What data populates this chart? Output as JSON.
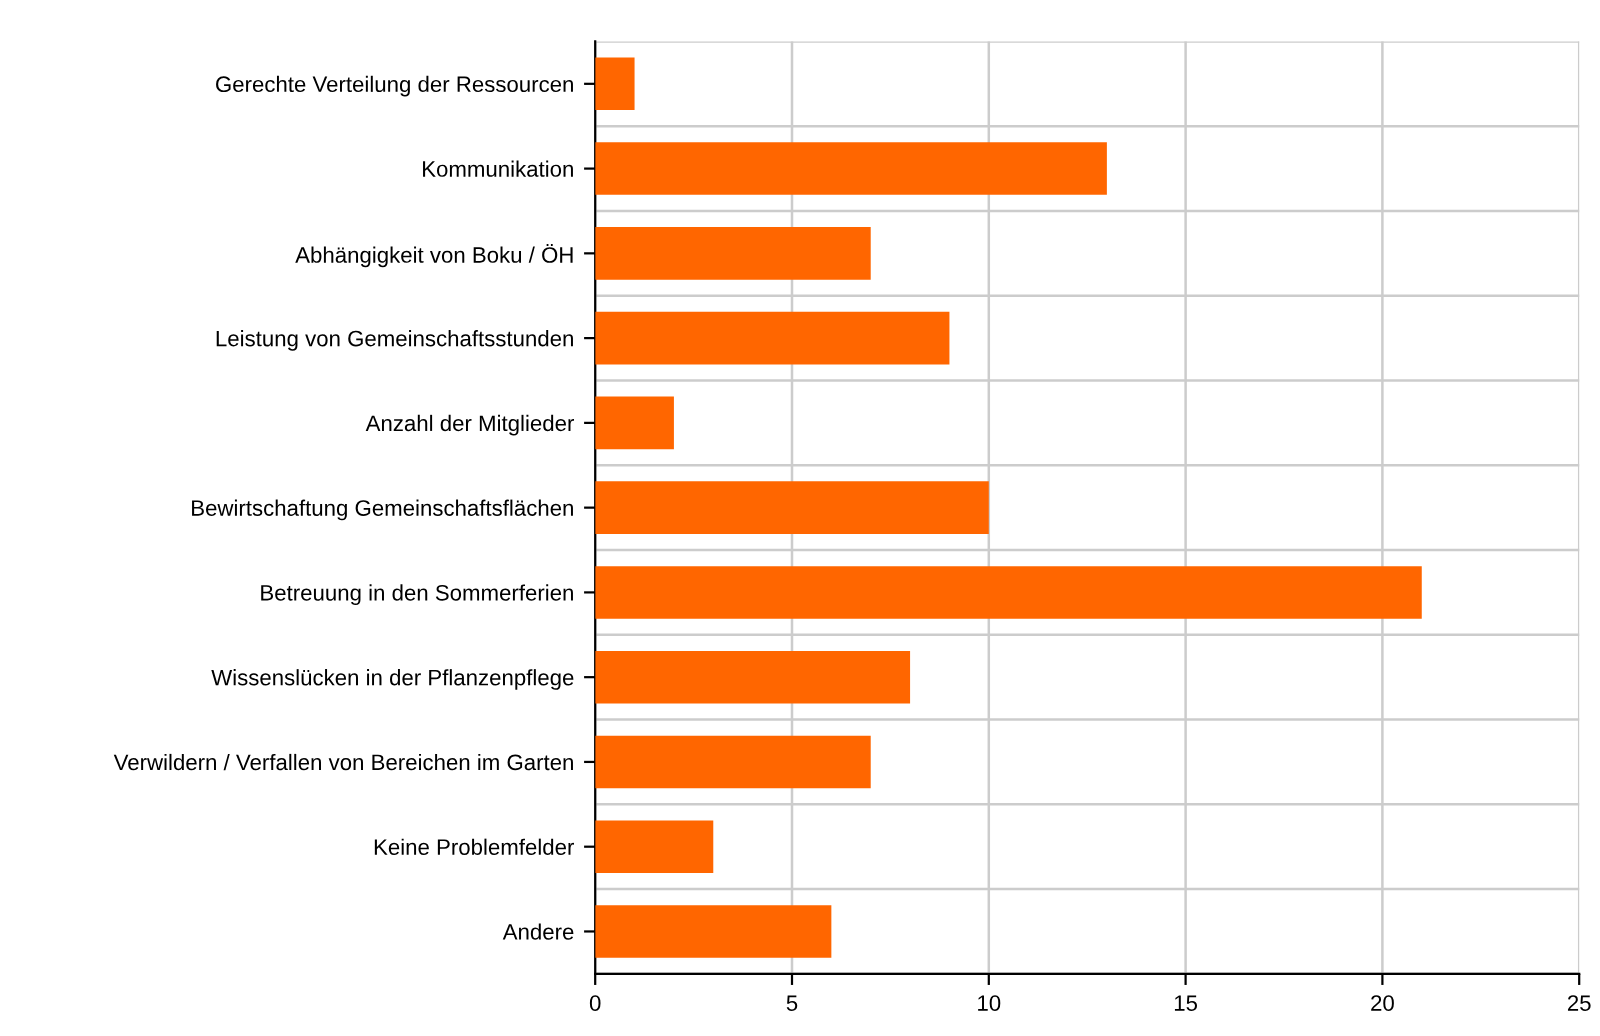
{
  "chart_data": {
    "type": "bar",
    "orientation": "horizontal",
    "categories": [
      "Gerechte Verteilung der Ressourcen",
      "Kommunikation",
      "Abhängigkeit von Boku / ÖH",
      "Leistung von Gemeinschaftsstunden",
      "Anzahl der Mitglieder",
      "Bewirtschaftung Gemeinschaftsflächen",
      "Betreuung in den Sommerferien",
      "Wissenslücken in der Pflanzenpflege",
      "Verwildern / Verfallen von Bereichen im Garten",
      "Keine Problemfelder",
      "Andere"
    ],
    "values": [
      1,
      13,
      7,
      9,
      2,
      10,
      21,
      8,
      7,
      3,
      6
    ],
    "color": "#ff6600",
    "xlim": [
      0,
      25
    ],
    "xticks": [
      0,
      5,
      10,
      15,
      20,
      25
    ],
    "grid": true
  }
}
